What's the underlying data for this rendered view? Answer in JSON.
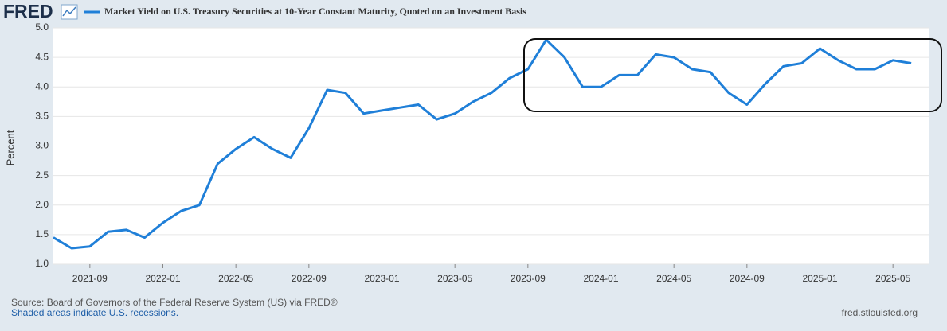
{
  "chart_data": {
    "type": "line",
    "logo": "FRED",
    "series": [
      {
        "name": "Market Yield on U.S. Treasury Securities at 10-Year Constant Maturity, Quoted on an Investment Basis",
        "color": "#1f7fd8",
        "values": [
          1.45,
          1.27,
          1.3,
          1.55,
          1.58,
          1.45,
          1.7,
          1.9,
          2.0,
          2.7,
          2.95,
          3.15,
          2.95,
          2.8,
          3.3,
          3.95,
          3.9,
          3.55,
          3.6,
          3.65,
          3.7,
          3.45,
          3.55,
          3.75,
          3.9,
          4.15,
          4.3,
          4.8,
          4.5,
          4.0,
          4.0,
          4.2,
          4.2,
          4.55,
          4.5,
          4.3,
          4.25,
          3.9,
          3.7,
          4.05,
          4.35,
          4.4,
          4.65,
          4.45,
          4.3,
          4.3,
          4.45,
          4.4
        ]
      }
    ],
    "x": [
      "2021-07",
      "2021-08",
      "2021-09",
      "2021-10",
      "2021-11",
      "2021-12",
      "2022-01",
      "2022-02",
      "2022-03",
      "2022-04",
      "2022-05",
      "2022-06",
      "2022-07",
      "2022-08",
      "2022-09",
      "2022-10",
      "2022-11",
      "2022-12",
      "2023-01",
      "2023-02",
      "2023-03",
      "2023-04",
      "2023-05",
      "2023-06",
      "2023-07",
      "2023-08",
      "2023-09",
      "2023-10",
      "2023-11",
      "2023-12",
      "2024-01",
      "2024-02",
      "2024-03",
      "2024-04",
      "2024-05",
      "2024-06",
      "2024-07",
      "2024-08",
      "2024-09",
      "2024-10",
      "2024-11",
      "2024-12",
      "2025-01",
      "2025-02",
      "2025-03",
      "2025-04",
      "2025-05",
      "2025-06"
    ],
    "xlim": [
      "2021-07",
      "2025-07"
    ],
    "xticks": [
      "2021-09",
      "2022-01",
      "2022-05",
      "2022-09",
      "2023-01",
      "2023-05",
      "2023-09",
      "2024-01",
      "2024-05",
      "2024-09",
      "2025-01",
      "2025-05"
    ],
    "ylabel": "Percent",
    "ylim": [
      1,
      5
    ],
    "yticks": [
      {
        "value": 1,
        "label": "1.0"
      },
      1.5,
      {
        "value": 2,
        "label": "2.0"
      },
      2.5,
      {
        "value": 3,
        "label": "3.0"
      },
      3.5,
      {
        "value": 4,
        "label": "4.0"
      },
      4.5,
      {
        "value": 5,
        "label": "5.0"
      }
    ],
    "grid": true,
    "source": "Source: Board of Governors of the Federal Reserve System (US) via FRED®",
    "note": "Shaded areas indicate U.S. recessions.",
    "credit": "fred.stlouisfed.org"
  }
}
